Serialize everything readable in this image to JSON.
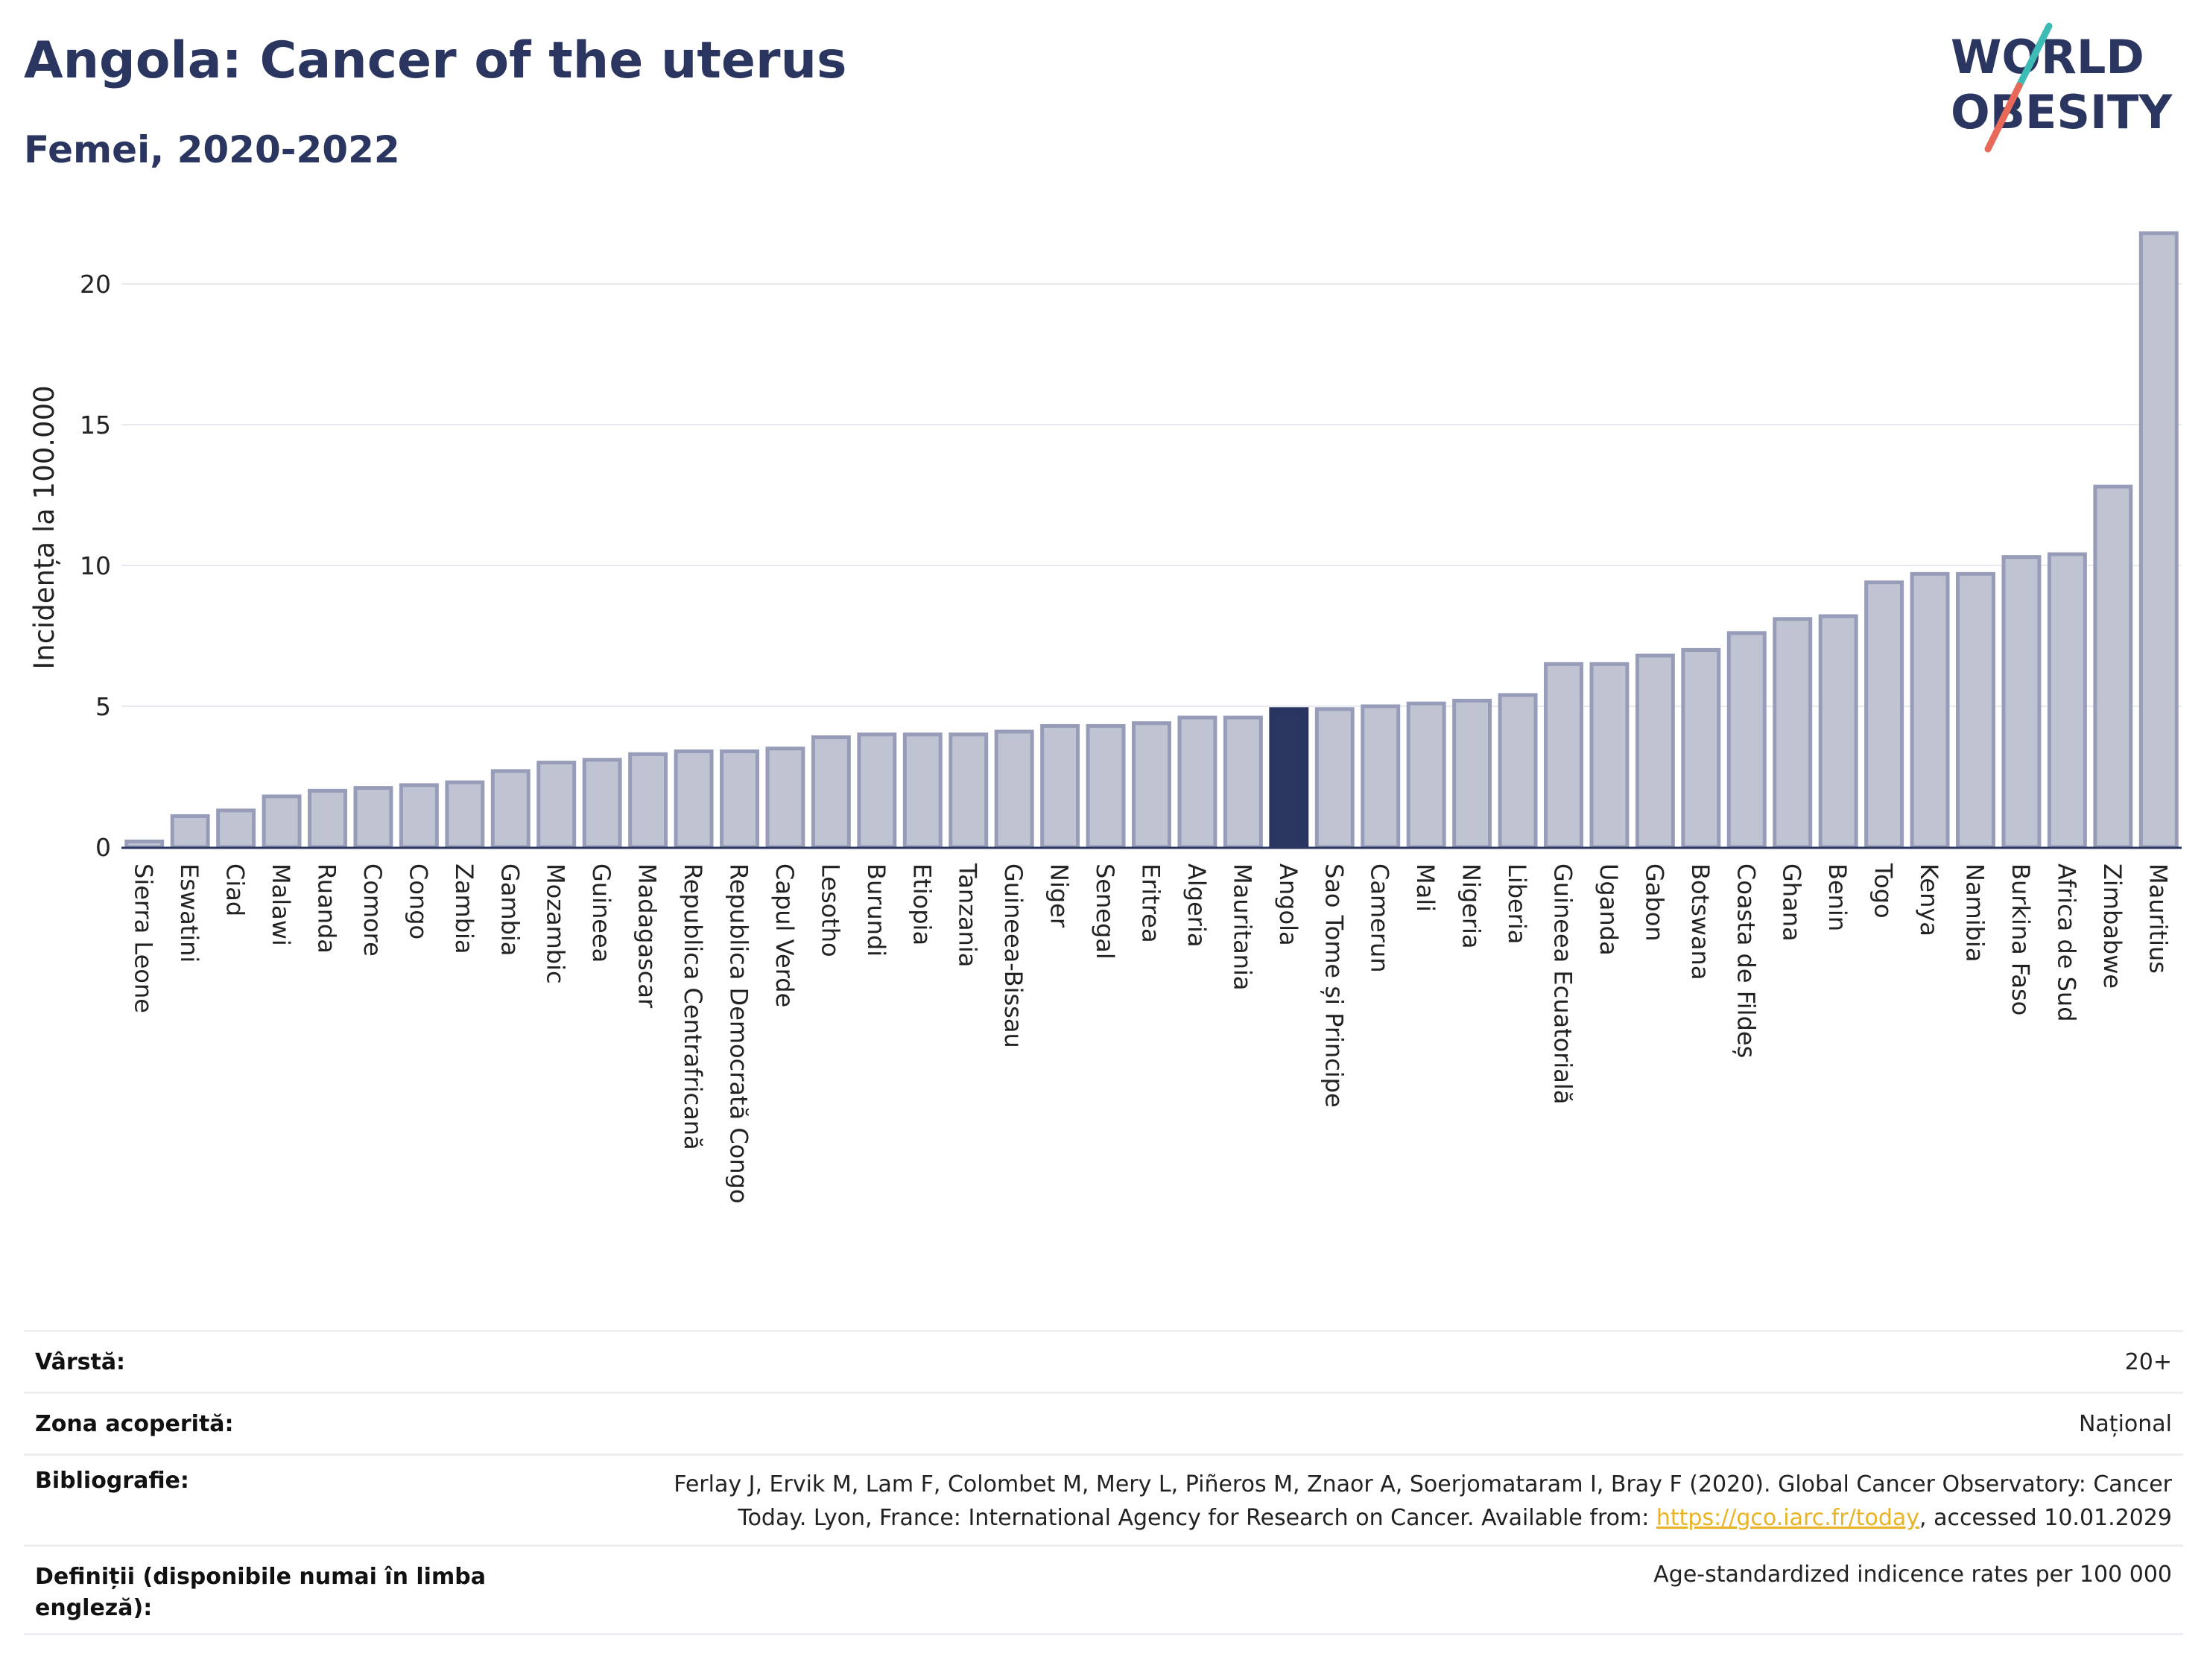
{
  "header": {
    "title": "Angola: Cancer of the uterus",
    "subtitle": "Femei, 2020-2022"
  },
  "logo": {
    "line1": "WORLD",
    "line2": "OBESITY",
    "colors": {
      "text": "#2a3560",
      "slash_top": "#3dbcb5",
      "slash_bottom": "#e8685a"
    }
  },
  "chart_data": {
    "type": "bar",
    "ylabel": "Incidența la 100.000",
    "ylim": [
      0,
      22
    ],
    "yticks": [
      0,
      5,
      10,
      15,
      20
    ],
    "highlight": "Angola",
    "colors": {
      "bar": "#c0c4d2",
      "bar_edge": "#979cb8",
      "highlight": "#2a3560",
      "grid": "#e9eaef"
    },
    "categories": [
      "Sierra Leone",
      "Eswatini",
      "Ciad",
      "Malawi",
      "Ruanda",
      "Comore",
      "Congo",
      "Zambia",
      "Gambia",
      "Mozambic",
      "Guineea",
      "Madagascar",
      "Republica Centrafricană",
      "Republica Democrată Congo",
      "Capul Verde",
      "Lesotho",
      "Burundi",
      "Etiopia",
      "Tanzania",
      "Guineea-Bissau",
      "Niger",
      "Senegal",
      "Eritrea",
      "Algeria",
      "Mauritania",
      "Angola",
      "Sao Tome și Principe",
      "Camerun",
      "Mali",
      "Nigeria",
      "Liberia",
      "Guineea Ecuatorială",
      "Uganda",
      "Gabon",
      "Botswana",
      "Coasta de Fildeș",
      "Ghana",
      "Benin",
      "Togo",
      "Kenya",
      "Namibia",
      "Burkina Faso",
      "Africa de Sud",
      "Zimbabwe",
      "Mauritius"
    ],
    "values": [
      0.2,
      1.1,
      1.3,
      1.8,
      2.0,
      2.1,
      2.2,
      2.3,
      2.7,
      3.0,
      3.1,
      3.3,
      3.4,
      3.4,
      3.5,
      3.9,
      4.0,
      4.0,
      4.0,
      4.1,
      4.3,
      4.3,
      4.4,
      4.6,
      4.6,
      4.9,
      4.9,
      5.0,
      5.1,
      5.2,
      5.4,
      6.5,
      6.5,
      6.8,
      7.0,
      7.6,
      8.1,
      8.2,
      9.4,
      9.7,
      9.7,
      10.3,
      10.4,
      12.8,
      21.8
    ]
  },
  "info": {
    "age_label": "Vârstă:",
    "age_value": "20+",
    "area_label": "Zona acoperită:",
    "area_value": "Național",
    "bib_label": "Bibliografie:",
    "bib_line1": "Ferlay J, Ervik M, Lam F, Colombet M, Mery L, Piñeros M, Znaor A, Soerjomataram I, Bray F (2020). Global Cancer Observatory: Cancer",
    "bib_line2_pre": "Today. Lyon, France: International Agency for Research on Cancer. Available from: ",
    "bib_link": "https://gco.iarc.fr/today",
    "bib_line2_post": ", accessed 10.01.2029",
    "def_label": "Definiții (disponibile numai în limba engleză):",
    "def_value": "Age-standardized indicence rates per 100 000"
  }
}
